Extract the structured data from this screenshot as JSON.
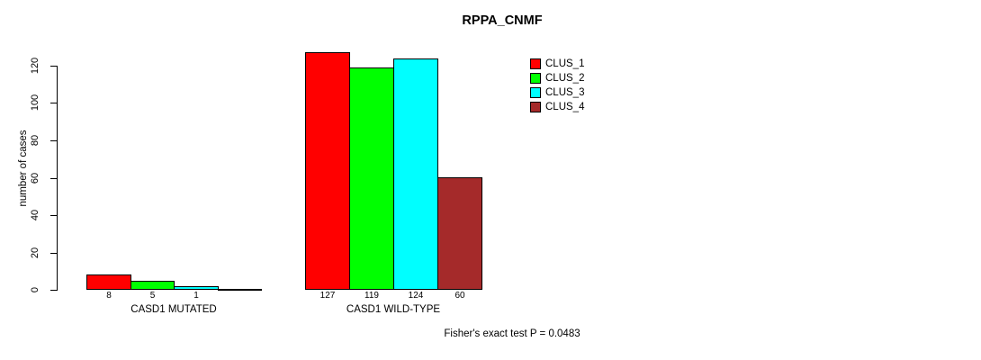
{
  "page": {
    "background": "#ffffff",
    "axis_color": "#000000",
    "text_color": "#000000"
  },
  "chart_data": {
    "type": "bar",
    "title": "RPPA_CNMF",
    "xlabel": "",
    "ylabel": "number of cases",
    "ylim": [
      0,
      120
    ],
    "yticks": [
      0,
      20,
      40,
      60,
      80,
      100,
      120
    ],
    "grid": false,
    "legend_position": "top-right",
    "categories": [
      "CASD1 MUTATED",
      "CASD1 WILD-TYPE"
    ],
    "series": [
      {
        "name": "CLUS_1",
        "color": "#ff0000",
        "values": [
          8,
          127
        ]
      },
      {
        "name": "CLUS_2",
        "color": "#00ff00",
        "values": [
          5,
          119
        ]
      },
      {
        "name": "CLUS_3",
        "color": "#00ffff",
        "values": [
          1,
          124
        ]
      },
      {
        "name": "CLUS_4",
        "color": "#a52a2a",
        "values": [
          0,
          60
        ]
      }
    ],
    "bar_value_labels": [
      [
        "8",
        "5",
        "1",
        ""
      ],
      [
        "127",
        "119",
        "124",
        "60"
      ]
    ],
    "legend": [
      {
        "label": "CLUS_1",
        "color": "#ff0000"
      },
      {
        "label": "CLUS_2",
        "color": "#00ff00"
      },
      {
        "label": "CLUS_3",
        "color": "#00ffff"
      },
      {
        "label": "CLUS_4",
        "color": "#a52a2a"
      }
    ],
    "footnote": "Fisher's exact test P = 0.0483"
  }
}
